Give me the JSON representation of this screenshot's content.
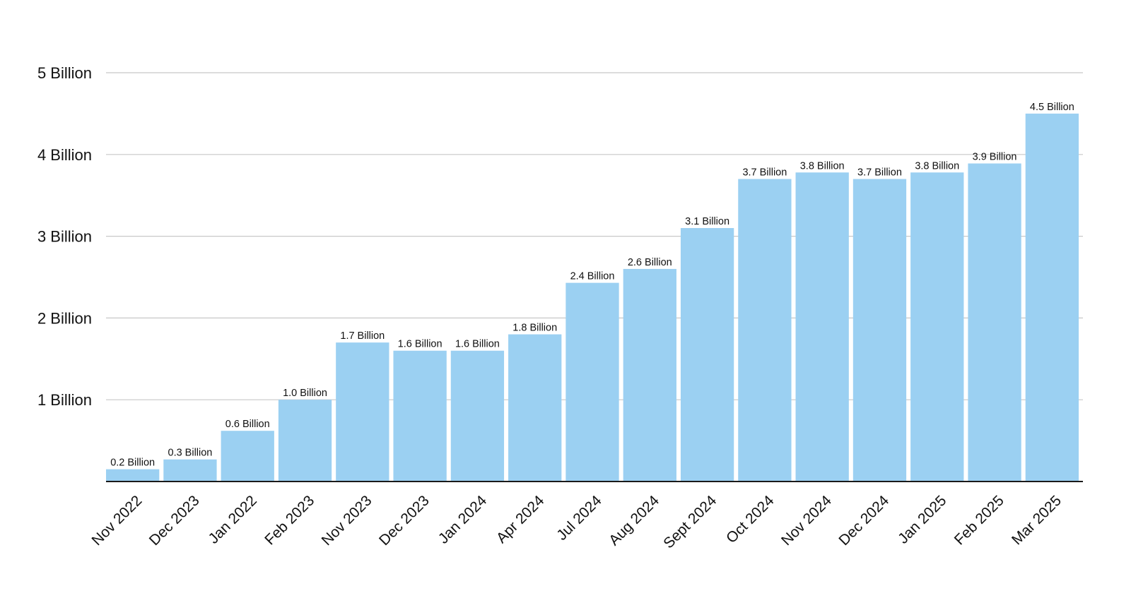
{
  "chart_data": {
    "type": "bar",
    "title": "",
    "xlabel": "",
    "ylabel": "",
    "bar_color": "#9bd0f2",
    "categories": [
      "Nov 2022",
      "Dec 2023",
      "Jan 2022",
      "Feb 2023",
      "Nov 2023",
      "Dec 2023",
      "Jan 2024",
      "Apr 2024",
      "Jul 2024",
      "Aug 2024",
      "Sept 2024",
      "Oct 2024",
      "Nov 2024",
      "Dec 2024",
      "Jan 2025",
      "Feb 2025",
      "Mar 2025"
    ],
    "values": [
      0.15,
      0.27,
      0.62,
      1.0,
      1.7,
      1.6,
      1.6,
      1.8,
      2.43,
      2.6,
      3.1,
      3.7,
      3.78,
      3.7,
      3.78,
      3.89,
      4.5
    ],
    "data_labels": [
      "0.2 Billion",
      "0.3 Billion",
      "0.6 Billion",
      "1.0 Billion",
      "1.7 Billion",
      "1.6 Billion",
      "1.6 Billion",
      "1.8 Billion",
      "2.4 Billion",
      "2.6 Billion",
      "3.1 Billion",
      "3.7 Billion",
      "3.8 Billion",
      "3.7 Billion",
      "3.8 Billion",
      "3.9 Billion",
      "4.5 Billion"
    ],
    "ylim": [
      0,
      5
    ],
    "yticks": [
      1,
      2,
      3,
      4,
      5
    ],
    "ytick_labels": [
      "1 Billion",
      "2 Billion",
      "3 Billion",
      "4 Billion",
      "5 Billion"
    ],
    "grid": true
  }
}
